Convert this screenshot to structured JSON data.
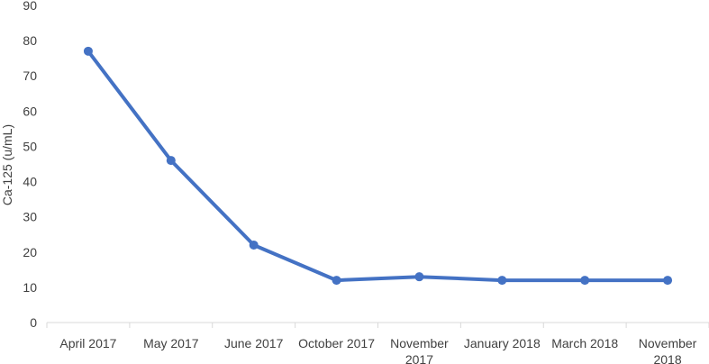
{
  "chart_data": {
    "type": "line",
    "title": "",
    "xlabel": "",
    "ylabel": "Ca-125 (u/mL)",
    "ylim": [
      0,
      90
    ],
    "yticks": [
      0,
      10,
      20,
      30,
      40,
      50,
      60,
      70,
      80,
      90
    ],
    "grid": false,
    "legend": "none",
    "categories": [
      [
        "April 2017"
      ],
      [
        "May 2017"
      ],
      [
        "June 2017"
      ],
      [
        "October 2017"
      ],
      [
        "November",
        "2017"
      ],
      [
        "January 2018"
      ],
      [
        "March 2018"
      ],
      [
        "November",
        "2018"
      ]
    ],
    "series": [
      {
        "values": [
          77,
          46,
          22,
          12,
          13,
          12,
          12,
          12
        ],
        "color": "#4472c4"
      }
    ],
    "colors": {
      "axis": "#d9d9d9",
      "text": "#404040",
      "line": "#4472c4"
    }
  }
}
